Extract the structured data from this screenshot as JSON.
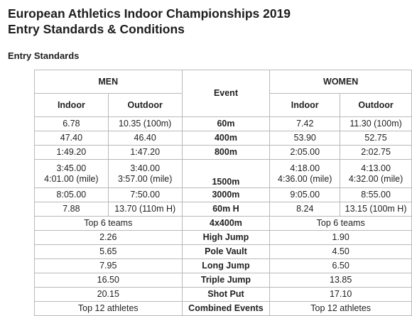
{
  "title_line1": "European Athletics Indoor Championships 2019",
  "title_line2": "Entry Standards & Conditions",
  "section_title": "Entry Standards",
  "table": {
    "men_label": "MEN",
    "event_label": "Event",
    "women_label": "WOMEN",
    "indoor_label": "Indoor",
    "outdoor_label": "Outdoor",
    "rows": [
      {
        "event": "60m",
        "men_indoor": "6.78",
        "men_outdoor": "10.35 (100m)",
        "women_indoor": "7.42",
        "women_outdoor": "11.30 (100m)"
      },
      {
        "event": "400m",
        "men_indoor": "47.40",
        "men_outdoor": "46.40",
        "women_indoor": "53.90",
        "women_outdoor": "52.75"
      },
      {
        "event": "800m",
        "men_indoor": "1:49.20",
        "men_outdoor": "1:47.20",
        "women_indoor": "2:05.00",
        "women_outdoor": "2:02.75"
      },
      {
        "event": "1500m",
        "men_indoor_1": "3:45.00",
        "men_indoor_2": "4:01.00 (mile)",
        "men_outdoor_1": "3:40.00",
        "men_outdoor_2": "3:57.00 (mile)",
        "women_indoor_1": "4:18.00",
        "women_indoor_2": "4:36.00 (mile)",
        "women_outdoor_1": "4:13.00",
        "women_outdoor_2": "4:32.00 (mile)"
      },
      {
        "event": "3000m",
        "men_indoor": "8:05.00",
        "men_outdoor": "7:50.00",
        "women_indoor": "9:05.00",
        "women_outdoor": "8:55.00"
      },
      {
        "event": "60m H",
        "men_indoor": "7.88",
        "men_outdoor": "13.70 (110m H)",
        "women_indoor": "8.24",
        "women_outdoor": "13.15 (100m H)"
      },
      {
        "event": "4x400m",
        "men": "Top 6 teams",
        "women": "Top 6 teams"
      },
      {
        "event": "High Jump",
        "men": "2.26",
        "women": "1.90"
      },
      {
        "event": "Pole Vault",
        "men": "5.65",
        "women": "4.50"
      },
      {
        "event": "Long Jump",
        "men": "7.95",
        "women": "6.50"
      },
      {
        "event": "Triple Jump",
        "men": "16.50",
        "women": "13.85"
      },
      {
        "event": "Shot Put",
        "men": "20.15",
        "women": "17.10"
      },
      {
        "event": "Combined Events",
        "men": "Top 12 athletes",
        "women": "Top 12 athletes"
      }
    ]
  }
}
